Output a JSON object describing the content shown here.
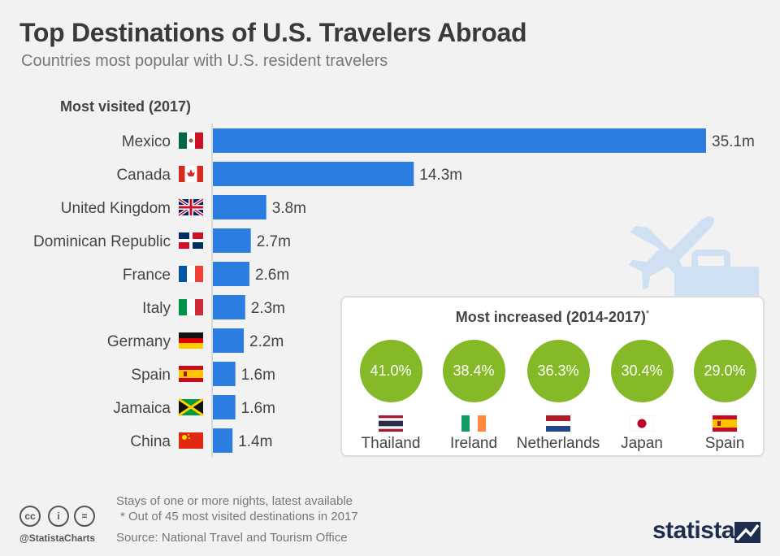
{
  "header": {
    "title": "Top Destinations of U.S. Travelers Abroad",
    "subtitle": "Countries most popular with U.S. resident travelers"
  },
  "chart_data": {
    "type": "bar",
    "orientation": "horizontal",
    "title": "Most visited (2017)",
    "unit": "m",
    "categories": [
      "Mexico",
      "Canada",
      "United Kingdom",
      "Dominican Republic",
      "France",
      "Italy",
      "Germany",
      "Spain",
      "Jamaica",
      "China"
    ],
    "values": [
      35.1,
      14.3,
      3.8,
      2.7,
      2.6,
      2.3,
      2.2,
      1.6,
      1.6,
      1.4
    ],
    "value_labels": [
      "35.1m",
      "14.3m",
      "3.8m",
      "2.7m",
      "2.6m",
      "2.3m",
      "2.2m",
      "1.6m",
      "1.6m",
      "1.4m"
    ],
    "flags": [
      "mexico-flag",
      "canada-flag",
      "uk-flag",
      "dominican-republic-flag",
      "france-flag",
      "italy-flag",
      "germany-flag",
      "spain-flag",
      "jamaica-flag",
      "china-flag"
    ],
    "bar_color": "#2b7de0",
    "grid": false
  },
  "increased": {
    "title": "Most increased (2014-2017)",
    "title_mark": "*",
    "circle_color": "#85b927",
    "items": [
      {
        "value": "41.0%",
        "name": "Thailand",
        "flag": "thailand-flag"
      },
      {
        "value": "38.4%",
        "name": "Ireland",
        "flag": "ireland-flag"
      },
      {
        "value": "36.3%",
        "name": "Netherlands",
        "flag": "netherlands-flag"
      },
      {
        "value": "30.4%",
        "name": "Japan",
        "flag": "japan-flag"
      },
      {
        "value": "29.0%",
        "name": "Spain",
        "flag": "spain-flag"
      }
    ]
  },
  "footer": {
    "note1": "Stays of one or more nights, latest available",
    "note2": "* Out of 45 most visited destinations in 2017",
    "source": "Source: National Travel and Tourism Office",
    "handle": "@StatistaCharts",
    "license_icons": [
      "cc-icon",
      "by-icon",
      "nd-icon"
    ],
    "license_glyphs": [
      "cc",
      "i",
      "="
    ],
    "brand": "statista"
  }
}
